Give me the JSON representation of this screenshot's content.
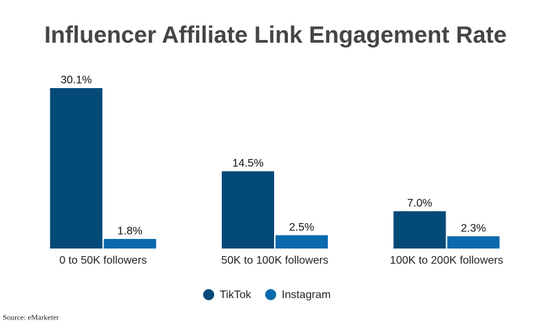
{
  "chart_data": {
    "type": "bar",
    "title": "Influencer Affiliate Link Engagement Rate",
    "categories": [
      "0 to 50K followers",
      "50K to 100K followers",
      "100K to 200K followers"
    ],
    "series": [
      {
        "name": "TikTok",
        "color": "#034a78",
        "values": [
          30.1,
          14.5,
          7
        ],
        "value_labels": [
          "30.1%",
          "14.5%",
          "7.0%"
        ]
      },
      {
        "name": "Instagram",
        "color": "#0a6aae",
        "values": [
          1.8,
          2.5,
          2.3
        ],
        "value_labels": [
          "1.8%",
          "2.5%",
          "2.3%"
        ]
      }
    ],
    "legend": "bottom",
    "source": "Source: eMarketer"
  }
}
